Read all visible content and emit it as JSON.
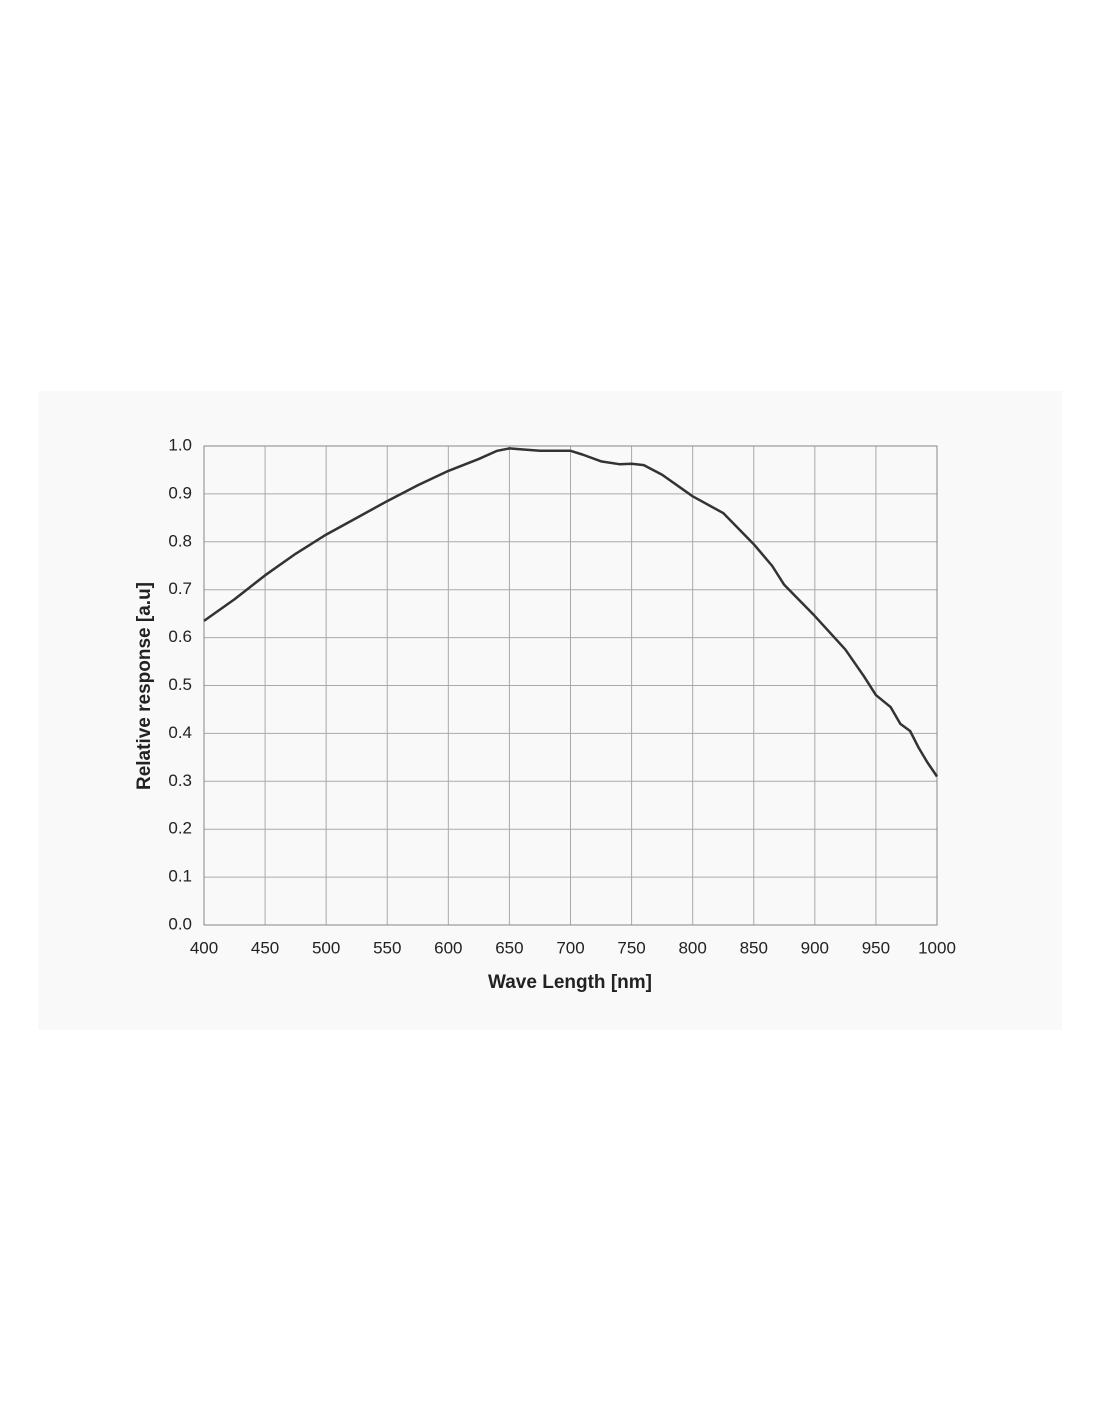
{
  "chart_data": {
    "type": "line",
    "x_label": "Wave Length [nm]",
    "y_label": "Relative response [a.u]",
    "x": [
      400,
      425,
      450,
      475,
      500,
      525,
      550,
      575,
      600,
      625,
      640,
      650,
      660,
      675,
      690,
      700,
      710,
      725,
      740,
      750,
      760,
      775,
      800,
      825,
      850,
      865,
      875,
      900,
      925,
      940,
      950,
      962,
      970,
      978,
      985,
      992,
      1000
    ],
    "values": [
      0.635,
      0.68,
      0.73,
      0.775,
      0.815,
      0.85,
      0.885,
      0.918,
      0.948,
      0.973,
      0.99,
      0.995,
      0.993,
      0.99,
      0.99,
      0.99,
      0.982,
      0.968,
      0.962,
      0.963,
      0.96,
      0.94,
      0.895,
      0.86,
      0.795,
      0.75,
      0.71,
      0.645,
      0.575,
      0.52,
      0.48,
      0.455,
      0.42,
      0.405,
      0.37,
      0.34,
      0.31
    ],
    "color": "#333333",
    "xlim": [
      400,
      1000
    ],
    "ylim": [
      0,
      1
    ],
    "xticks": [
      400,
      450,
      500,
      550,
      600,
      650,
      700,
      750,
      800,
      850,
      900,
      950,
      1000
    ],
    "yticks": [
      {
        "value": 0,
        "label": "0.0"
      },
      0.1,
      0.2,
      0.3,
      0.4,
      0.5,
      0.6,
      0.7,
      0.8,
      0.9,
      {
        "value": 1,
        "label": "1.0"
      }
    ],
    "grid": true
  }
}
